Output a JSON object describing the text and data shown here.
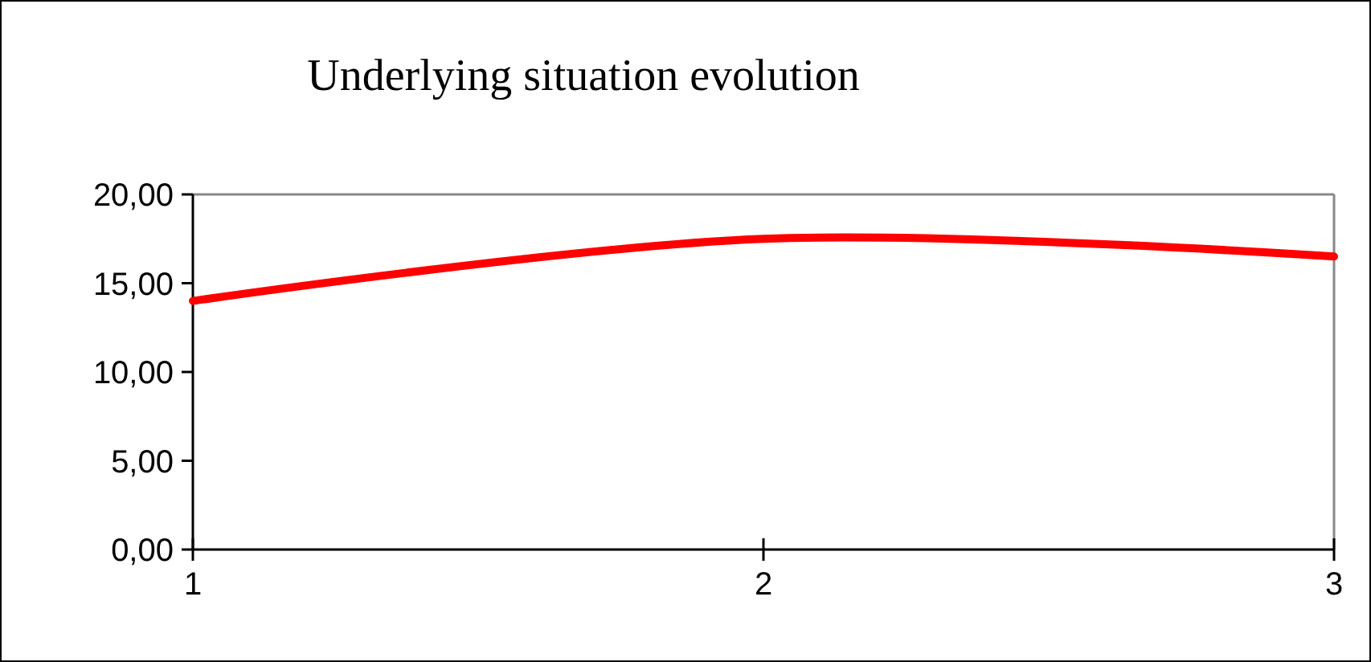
{
  "chart_data": {
    "type": "line",
    "title": "Underlying situation evolution",
    "x": [
      1,
      2,
      3
    ],
    "series": [
      {
        "color": "#ff0000",
        "values": [
          14,
          17.5,
          16.5
        ]
      }
    ],
    "xlim": [
      1,
      3
    ],
    "xticks": [
      1,
      2,
      3
    ],
    "ylim": [
      0,
      20
    ],
    "yticks": [
      {
        "value": 0,
        "label": "0,00"
      },
      {
        "value": 5,
        "label": "5,00"
      },
      {
        "value": 10,
        "label": "10,00"
      },
      {
        "value": 15,
        "label": "15,00"
      },
      {
        "value": 20,
        "label": "20,00"
      }
    ],
    "grid": false,
    "marker": "none",
    "line_style": "solid"
  }
}
